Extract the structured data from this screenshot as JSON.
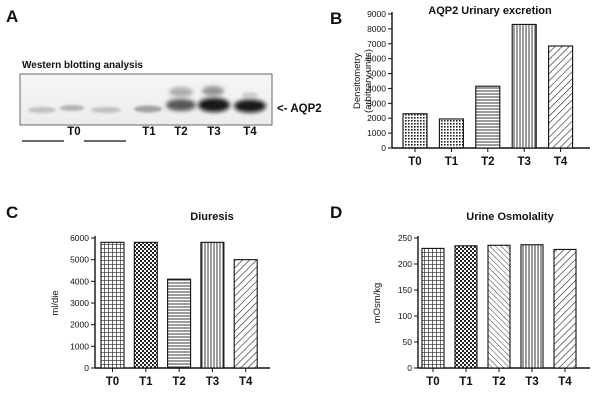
{
  "panels": {
    "A": {
      "label": "A",
      "title": "Western blotting analysis",
      "band_label": "<- AQP2",
      "lanes": [
        "T0",
        "T1",
        "T2",
        "T3",
        "T4"
      ]
    },
    "B": {
      "label": "B"
    },
    "C": {
      "label": "C"
    },
    "D": {
      "label": "D"
    }
  },
  "chart_data": [
    {
      "panel": "B",
      "type": "bar",
      "title": "AQP2 Urinary excretion",
      "ylabel": "Densitometry (arbitrary units)",
      "ylabel_lines": [
        "Densitometry",
        "(arbitrary units)"
      ],
      "categories": [
        "T0",
        "T1",
        "T2",
        "T3",
        "T4"
      ],
      "values": [
        2300,
        1950,
        4150,
        8300,
        6850
      ],
      "ylim": [
        0,
        9000
      ],
      "yticks": [
        0,
        1000,
        2000,
        3000,
        4000,
        5000,
        6000,
        7000,
        8000,
        9000
      ],
      "patterns": [
        "dots",
        "dots",
        "hlines",
        "vlines",
        "diag"
      ]
    },
    {
      "panel": "C",
      "type": "bar",
      "title": "Diuresis",
      "ylabel": "ml/die",
      "ylabel_lines": [
        "ml/die"
      ],
      "categories": [
        "T0",
        "T1",
        "T2",
        "T3",
        "T4"
      ],
      "values": [
        5800,
        5800,
        4100,
        5800,
        5000
      ],
      "ylim": [
        0,
        6000
      ],
      "yticks": [
        0,
        1000,
        2000,
        3000,
        4000,
        5000,
        6000
      ],
      "patterns": [
        "grid",
        "checker",
        "hlines",
        "vlines",
        "diag"
      ]
    },
    {
      "panel": "D",
      "type": "bar",
      "title": "Urine Osmolality",
      "ylabel": "mOsm/kg",
      "ylabel_lines": [
        "mOsm/kg"
      ],
      "categories": [
        "T0",
        "T1",
        "T2",
        "T3",
        "T4"
      ],
      "values": [
        230,
        235,
        236,
        237,
        228
      ],
      "ylim": [
        0,
        250
      ],
      "yticks": [
        0,
        50,
        100,
        150,
        200,
        250
      ],
      "patterns": [
        "grid",
        "checker",
        "diag2",
        "vlines",
        "diag"
      ]
    }
  ]
}
